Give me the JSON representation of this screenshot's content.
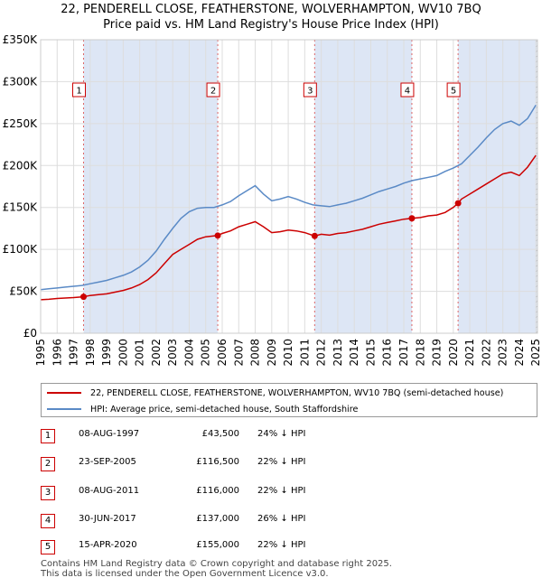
{
  "chart_data": {
    "type": "line",
    "title": "22, PENDERELL CLOSE, FEATHERSTONE, WOLVERHAMPTON, WV10 7BQ",
    "subtitle": "Price paid vs. HM Land Registry's House Price Index (HPI)",
    "xlabel": "",
    "ylabel": "",
    "xlim": [
      1995,
      2025.1
    ],
    "ylim": [
      0,
      350000
    ],
    "y_ticks": [
      {
        "value": 0,
        "label": "£0"
      },
      {
        "value": 50000,
        "label": "£50K"
      },
      {
        "value": 100000,
        "label": "£100K"
      },
      {
        "value": 150000,
        "label": "£150K"
      },
      {
        "value": 200000,
        "label": "£200K"
      },
      {
        "value": 250000,
        "label": "£250K"
      },
      {
        "value": 300000,
        "label": "£300K"
      },
      {
        "value": 350000,
        "label": "£350K"
      }
    ],
    "x_ticks": [
      "1995",
      "1996",
      "1997",
      "1998",
      "1999",
      "2000",
      "2001",
      "2002",
      "2003",
      "2004",
      "2005",
      "2006",
      "2007",
      "2008",
      "2009",
      "2010",
      "2011",
      "2012",
      "2013",
      "2014",
      "2015",
      "2016",
      "2017",
      "2018",
      "2019",
      "2020",
      "2021",
      "2022",
      "2023",
      "2024",
      "2025"
    ],
    "grid": true,
    "legend_position": "below",
    "series": [
      {
        "name": "22, PENDERELL CLOSE, FEATHERSTONE, WOLVERHAMPTON, WV10 7BQ (semi-detached house)",
        "color": "#cc0000",
        "x": [
          1995.0,
          1995.5,
          1996.0,
          1996.5,
          1997.0,
          1997.6,
          1998.0,
          1998.5,
          1999.0,
          1999.5,
          2000.0,
          2000.5,
          2001.0,
          2001.5,
          2002.0,
          2002.5,
          2003.0,
          2003.5,
          2004.0,
          2004.5,
          2005.0,
          2005.73,
          2006.0,
          2006.5,
          2007.0,
          2007.5,
          2008.0,
          2008.5,
          2009.0,
          2009.5,
          2010.0,
          2010.5,
          2011.0,
          2011.6,
          2012.0,
          2012.5,
          2013.0,
          2013.5,
          2014.0,
          2014.5,
          2015.0,
          2015.5,
          2016.0,
          2016.5,
          2017.0,
          2017.5,
          2018.0,
          2018.5,
          2019.0,
          2019.5,
          2020.0,
          2020.29,
          2020.5,
          2021.0,
          2021.5,
          2022.0,
          2022.5,
          2023.0,
          2023.5,
          2024.0,
          2024.5,
          2025.0
        ],
        "values": [
          40000,
          40500,
          41500,
          42000,
          42500,
          43500,
          45000,
          46000,
          47000,
          49000,
          51000,
          54000,
          58000,
          64000,
          72000,
          83000,
          94000,
          100000,
          106000,
          112000,
          115000,
          116500,
          119000,
          122000,
          127000,
          130000,
          133000,
          127000,
          120000,
          121000,
          123000,
          122000,
          120000,
          116000,
          118000,
          117000,
          119000,
          120000,
          122000,
          124000,
          127000,
          130000,
          132000,
          134000,
          136000,
          137000,
          138000,
          140000,
          141000,
          144000,
          150000,
          155000,
          160000,
          166000,
          172000,
          178000,
          184000,
          190000,
          192000,
          188000,
          198000,
          212000
        ]
      },
      {
        "name": "HPI: Average price, semi-detached house, South Staffordshire",
        "color": "#5a8ac6",
        "x": [
          1995.0,
          1995.5,
          1996.0,
          1996.5,
          1997.0,
          1997.5,
          1998.0,
          1998.5,
          1999.0,
          1999.5,
          2000.0,
          2000.5,
          2001.0,
          2001.5,
          2002.0,
          2002.5,
          2003.0,
          2003.5,
          2004.0,
          2004.5,
          2005.0,
          2005.5,
          2006.0,
          2006.5,
          2007.0,
          2007.5,
          2008.0,
          2008.5,
          2009.0,
          2009.5,
          2010.0,
          2010.5,
          2011.0,
          2011.5,
          2012.0,
          2012.5,
          2013.0,
          2013.5,
          2014.0,
          2014.5,
          2015.0,
          2015.5,
          2016.0,
          2016.5,
          2017.0,
          2017.5,
          2018.0,
          2018.5,
          2019.0,
          2019.5,
          2020.0,
          2020.5,
          2021.0,
          2021.5,
          2022.0,
          2022.5,
          2023.0,
          2023.5,
          2024.0,
          2024.5,
          2025.0
        ],
        "values": [
          52000,
          53000,
          54000,
          55000,
          56000,
          57000,
          59000,
          61000,
          63000,
          66000,
          69000,
          73000,
          79000,
          87000,
          98000,
          112000,
          125000,
          137000,
          145000,
          149000,
          150000,
          150000,
          153000,
          157000,
          164000,
          170000,
          176000,
          166000,
          158000,
          160000,
          163000,
          160000,
          156000,
          153000,
          152000,
          151000,
          153000,
          155000,
          158000,
          161000,
          165000,
          169000,
          172000,
          175000,
          179000,
          182000,
          184000,
          186000,
          188000,
          193000,
          197000,
          202000,
          212000,
          222000,
          233000,
          243000,
          250000,
          253000,
          248000,
          256000,
          272000
        ]
      }
    ],
    "sales": [
      {
        "label": "1",
        "date": "08-AUG-1997",
        "x": 1997.6,
        "price": 43500,
        "price_label": "£43,500",
        "hpi": "24% ↓ HPI"
      },
      {
        "label": "2",
        "date": "23-SEP-2005",
        "x": 2005.73,
        "price": 116500,
        "price_label": "£116,500",
        "hpi": "22% ↓ HPI"
      },
      {
        "label": "3",
        "date": "08-AUG-2011",
        "x": 2011.6,
        "price": 116000,
        "price_label": "£116,000",
        "hpi": "22% ↓ HPI"
      },
      {
        "label": "4",
        "date": "30-JUN-2017",
        "x": 2017.49,
        "price": 137000,
        "price_label": "£137,000",
        "hpi": "26% ↓ HPI"
      },
      {
        "label": "5",
        "date": "15-APR-2020",
        "x": 2020.29,
        "price": 155000,
        "price_label": "£155,000",
        "hpi": "22% ↓ HPI"
      }
    ],
    "colors": {
      "sale_series": "#cc0000",
      "hpi_series": "#5a8ac6",
      "shade": "#dde6f5",
      "grid": "#dddddd"
    }
  },
  "legend": {
    "sale_label": "22, PENDERELL CLOSE, FEATHERSTONE, WOLVERHAMPTON, WV10 7BQ (semi-detached house)",
    "hpi_label": "HPI: Average price, semi-detached house, South Staffordshire"
  },
  "footer": {
    "line1": "Contains HM Land Registry data © Crown copyright and database right 2025.",
    "line2": "This data is licensed under the Open Government Licence v3.0."
  }
}
